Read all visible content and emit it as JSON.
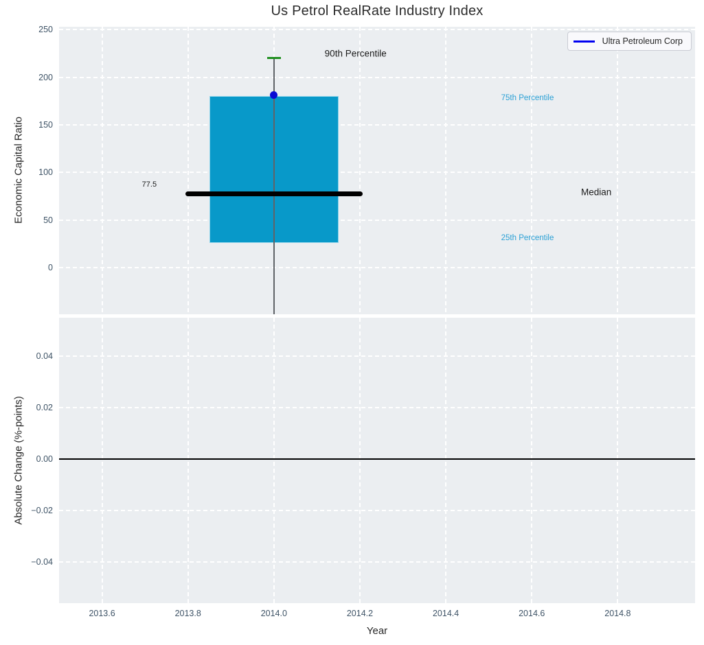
{
  "figure": {
    "bg": "#ffffff",
    "axes_bg": "#ebeef1",
    "grid_color": "#ffffff",
    "tick_color": "#3e5366",
    "title_color": "#2b2b2b"
  },
  "legend": {
    "label": "Ultra Petroleum Corp",
    "line_color": "#0000f0"
  },
  "chart_data": [
    {
      "type": "box",
      "title": "Us Petrol RealRate Industry Index",
      "ylabel": "Economic Capital Ratio",
      "yticks": [
        0,
        50,
        100,
        150,
        200,
        250
      ],
      "ytick_labels": [
        "0",
        "50",
        "100",
        "150",
        "200",
        "250"
      ],
      "ylim": [
        -49,
        253
      ],
      "xticks": [
        2013.6,
        2013.8,
        2014.0,
        2014.2,
        2014.4,
        2014.6,
        2014.8
      ],
      "xtick_labels": [
        "2013.6",
        "2013.8",
        "2014.0",
        "2014.2",
        "2014.4",
        "2014.6",
        "2014.8"
      ],
      "xlim": [
        2013.5,
        2014.98
      ],
      "grid": true,
      "legend_position": "upper right",
      "box": {
        "x": 2014.0,
        "box_halfwidth": 0.15,
        "median_halfwidth": 0.206,
        "q1": 26,
        "median": 77.5,
        "q3": 180,
        "p90": 220,
        "whisker_low_display": -49,
        "fill": "#0899c9",
        "edge": "#8ed3ea",
        "median_color": "#000000",
        "cap_color": "#1f8f1f",
        "whisker_color": "#5f6368"
      },
      "point": {
        "label": "Ultra Petroleum Corp",
        "x": 2014.0,
        "y": 181,
        "color": "#0a0ad4"
      },
      "annotations": [
        {
          "text": "90th Percentile",
          "x": 2014.19,
          "y": 225,
          "color": "#1a1a1a",
          "size": 13.5
        },
        {
          "text": "75th Percentile",
          "x": 2014.59,
          "y": 178,
          "color": "#2aa0d5",
          "size": 11.5
        },
        {
          "text": "Median",
          "x": 2014.75,
          "y": 79,
          "color": "#1a1a1a",
          "size": 13.5
        },
        {
          "text": "25th Percentile",
          "x": 2014.59,
          "y": 31,
          "color": "#2aa0d5",
          "size": 11.5
        },
        {
          "text": "77.5",
          "x": 2013.71,
          "y": 87,
          "color": "#1a1a1a",
          "size": 11
        }
      ]
    },
    {
      "type": "line",
      "ylabel": "Absolute Change (%-points)",
      "xlabel": "Year",
      "yticks": [
        -0.04,
        -0.02,
        0.0,
        0.02,
        0.04
      ],
      "ytick_labels": [
        "−0.04",
        "−0.02",
        "0.00",
        "0.02",
        "0.04"
      ],
      "ylim": [
        -0.056,
        0.055
      ],
      "xticks": [
        2013.6,
        2013.8,
        2014.0,
        2014.2,
        2014.4,
        2014.6,
        2014.8
      ],
      "xtick_labels": [
        "2013.6",
        "2013.8",
        "2014.0",
        "2014.2",
        "2014.4",
        "2014.6",
        "2014.8"
      ],
      "xlim": [
        2013.5,
        2014.98
      ],
      "grid": true,
      "zero_line": {
        "y": 0.0,
        "color": "#000000"
      },
      "series": []
    }
  ]
}
